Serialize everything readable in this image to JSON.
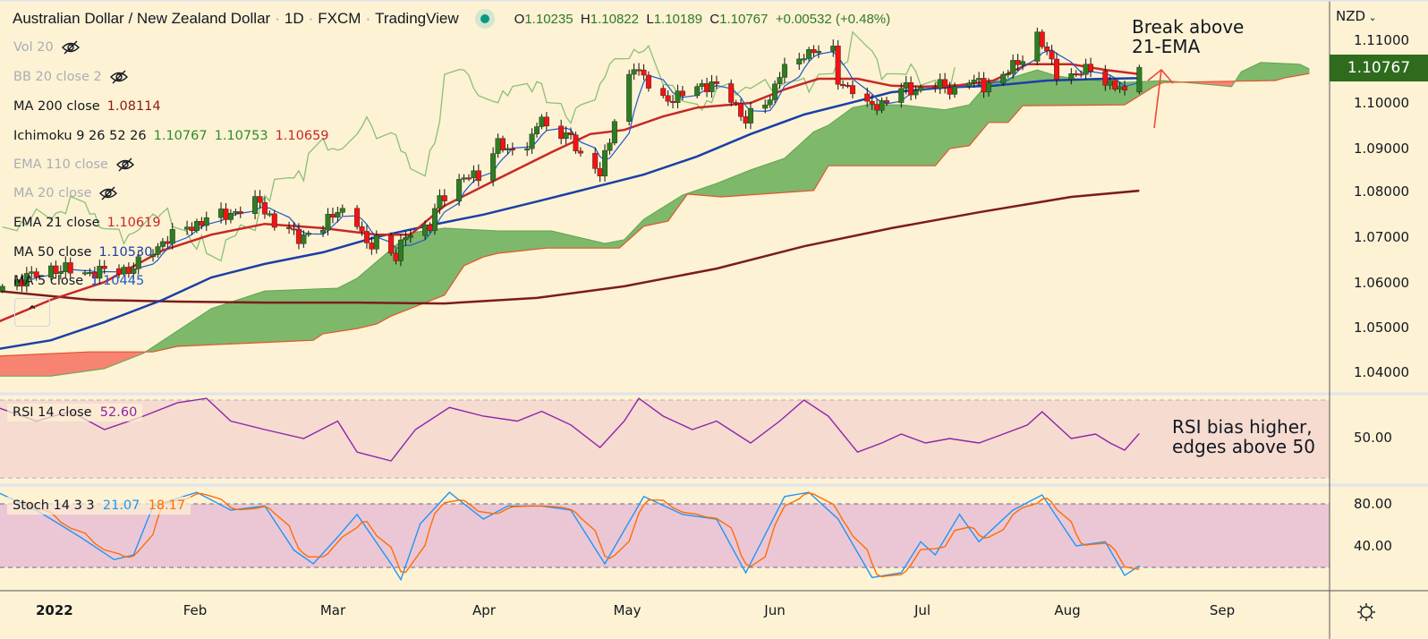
{
  "header": {
    "symbol_name": "Australian Dollar / New Zealand Dollar",
    "interval": "1D",
    "exchange": "FXCM",
    "source": "TradingView",
    "ohlc": {
      "open_label": "O",
      "open": "1.10235",
      "high_label": "H",
      "high": "1.10822",
      "low_label": "L",
      "low": "1.10189",
      "close_label": "C",
      "close": "1.10767",
      "change": "+0.00532 (+0.48%)"
    }
  },
  "indicators": [
    {
      "label": "Vol 20",
      "value": "",
      "hidden": true
    },
    {
      "label": "BB 20 close 2",
      "value": "",
      "hidden": true
    },
    {
      "label": "MA 200 close",
      "value": "1.08114",
      "color": "#8b1a1a"
    },
    {
      "label": "Ichimoku 9 26 52 26",
      "values": [
        "1.10767",
        "1.10753",
        "1.10659"
      ],
      "color": "#2e8b2e"
    },
    {
      "label": "EMA 110 close",
      "value": "",
      "hidden": true
    },
    {
      "label": "MA 20 close",
      "value": "",
      "hidden": true
    },
    {
      "label": "EMA 21 close",
      "value": "1.10619",
      "color": "#c62828"
    },
    {
      "label": "MA 50 close",
      "value": "1.10530",
      "color": "#1a3fa8"
    },
    {
      "label": "MA 5 close",
      "value": "1.10445",
      "color": "#1e58d0"
    }
  ],
  "price_axis": {
    "currency": "NZD",
    "ticks": [
      "1.11000",
      "1.10000",
      "1.09000",
      "1.08000",
      "1.07000",
      "1.06000",
      "1.05000",
      "1.04000"
    ],
    "last_price": "1.10767"
  },
  "time_axis": {
    "ticks": [
      "2022",
      "Feb",
      "Mar",
      "Apr",
      "May",
      "Jun",
      "Jul",
      "Aug",
      "Sep"
    ]
  },
  "rsi_pane": {
    "label": "RSI 14 close",
    "value": "52.60",
    "tick": "50.00"
  },
  "stoch_pane": {
    "label": "Stoch 14 3 3",
    "k": "21.07",
    "d": "18.17",
    "ticks": [
      "80.00",
      "40.00"
    ]
  },
  "annotations": {
    "break_ema": [
      "Break above",
      "21-EMA"
    ],
    "rsi_note": [
      "RSI bias higher,",
      "edges above 50"
    ]
  },
  "colors": {
    "background": "#fdf2d3",
    "up": "#2f7d22",
    "down": "#f01414",
    "cloud_bull": "#77b465",
    "cloud_bear": "#f77c6e",
    "chikou": "#8cbf78",
    "rsi": "#8e24aa",
    "stoch_k": "#2196f3",
    "stoch_d": "#ff6d00"
  },
  "chart_data": {
    "type": "candlestick",
    "ylim": [
      1.035,
      1.12
    ],
    "close_keypoints": [
      [
        "2021-12-24",
        1.0606
      ],
      [
        "2022-01-03",
        1.0644
      ],
      [
        "2022-01-11",
        1.0635
      ],
      [
        "2022-01-20",
        1.0644
      ],
      [
        "2022-01-26",
        1.0702
      ],
      [
        "2022-01-31",
        1.0731
      ],
      [
        "2022-02-04",
        1.075
      ],
      [
        "2022-02-11",
        1.0769
      ],
      [
        "2022-02-15",
        1.0788
      ],
      [
        "2022-02-18",
        1.074
      ],
      [
        "2022-02-23",
        1.0712
      ],
      [
        "2022-02-28",
        1.0731
      ],
      [
        "2022-03-03",
        1.0775
      ],
      [
        "2022-03-07",
        1.074
      ],
      [
        "2022-03-09",
        1.0692
      ],
      [
        "2022-03-11",
        1.0712
      ],
      [
        "2022-03-15",
        1.0663
      ],
      [
        "2022-03-17",
        1.0721
      ],
      [
        "2022-03-22",
        1.0731
      ],
      [
        "2022-03-24",
        1.0798
      ],
      [
        "2022-03-29",
        1.0837
      ],
      [
        "2022-04-01",
        1.0846
      ],
      [
        "2022-04-05",
        1.0913
      ],
      [
        "2022-04-07",
        1.0894
      ],
      [
        "2022-04-12",
        1.0923
      ],
      [
        "2022-04-14",
        1.0971
      ],
      [
        "2022-04-15",
        1.0942
      ],
      [
        "2022-04-19",
        1.0937
      ],
      [
        "2022-04-22",
        1.0885
      ],
      [
        "2022-04-26",
        1.0856
      ],
      [
        "2022-04-28",
        1.0913
      ],
      [
        "2022-04-29",
        1.0962
      ],
      [
        "2022-05-03",
        1.1087
      ],
      [
        "2022-05-05",
        1.1048
      ],
      [
        "2022-05-09",
        1.101
      ],
      [
        "2022-05-12",
        1.101
      ],
      [
        "2022-05-16",
        1.1038
      ],
      [
        "2022-05-19",
        1.1038
      ],
      [
        "2022-05-23",
        1.101
      ],
      [
        "2022-05-26",
        1.0962
      ],
      [
        "2022-05-31",
        1.101
      ],
      [
        "2022-06-02",
        1.1067
      ],
      [
        "2022-06-06",
        1.1087
      ],
      [
        "2022-06-07",
        1.1106
      ],
      [
        "2022-06-09",
        1.1115
      ],
      [
        "2022-06-13",
        1.1106
      ],
      [
        "2022-06-14",
        1.1048
      ],
      [
        "2022-06-17",
        1.1029
      ],
      [
        "2022-06-20",
        1.099
      ],
      [
        "2022-06-23",
        1.1
      ],
      [
        "2022-06-27",
        1.1029
      ],
      [
        "2022-06-30",
        1.1029
      ],
      [
        "2022-07-04",
        1.1038
      ],
      [
        "2022-07-08",
        1.1029
      ],
      [
        "2022-07-11",
        1.1048
      ],
      [
        "2022-07-14",
        1.1038
      ],
      [
        "2022-07-18",
        1.1058
      ],
      [
        "2022-07-21",
        1.1087
      ],
      [
        "2022-07-25",
        1.1144
      ],
      [
        "2022-07-26",
        1.1125
      ],
      [
        "2022-07-29",
        1.1067
      ],
      [
        "2022-08-02",
        1.1058
      ],
      [
        "2022-08-05",
        1.1077
      ],
      [
        "2022-08-09",
        1.1038
      ],
      [
        "2022-08-11",
        1.1029
      ],
      [
        "2022-08-12",
        1.10235
      ],
      [
        "2022-08-15",
        1.10767
      ]
    ],
    "last_bar": {
      "open": 1.10235,
      "high": 1.10822,
      "low": 1.10189,
      "close": 1.10767
    },
    "ema21": [
      [
        "2021-12-23",
        1.0529
      ],
      [
        "2022-01-03",
        1.0577
      ],
      [
        "2022-01-14",
        1.0615
      ],
      [
        "2022-01-26",
        1.0683
      ],
      [
        "2022-02-05",
        1.0717
      ],
      [
        "2022-02-16",
        1.074
      ],
      [
        "2022-02-28",
        1.0731
      ],
      [
        "2022-03-11",
        1.0717
      ],
      [
        "2022-03-18",
        1.0717
      ],
      [
        "2022-03-25",
        1.0779
      ],
      [
        "2022-04-05",
        1.0837
      ],
      [
        "2022-04-16",
        1.0894
      ],
      [
        "2022-04-24",
        1.0933
      ],
      [
        "2022-05-01",
        1.0942
      ],
      [
        "2022-05-09",
        1.0971
      ],
      [
        "2022-05-16",
        1.099
      ],
      [
        "2022-05-27",
        1.1
      ],
      [
        "2022-06-03",
        1.1029
      ],
      [
        "2022-06-10",
        1.1052
      ],
      [
        "2022-06-18",
        1.1052
      ],
      [
        "2022-06-25",
        1.1037
      ],
      [
        "2022-07-02",
        1.1035
      ],
      [
        "2022-07-09",
        1.1038
      ],
      [
        "2022-07-16",
        1.1048
      ],
      [
        "2022-07-23",
        1.1083
      ],
      [
        "2022-08-01",
        1.1083
      ],
      [
        "2022-08-08",
        1.1071
      ],
      [
        "2022-08-15",
        1.10619
      ]
    ],
    "ma50": [
      [
        "2021-12-23",
        1.0471
      ],
      [
        "2022-01-03",
        1.049
      ],
      [
        "2022-01-14",
        1.0529
      ],
      [
        "2022-01-26",
        1.0577
      ],
      [
        "2022-02-05",
        1.0625
      ],
      [
        "2022-02-16",
        1.0654
      ],
      [
        "2022-02-28",
        1.0679
      ],
      [
        "2022-03-11",
        1.0712
      ],
      [
        "2022-03-22",
        1.0737
      ],
      [
        "2022-04-02",
        1.076
      ],
      [
        "2022-04-13",
        1.0788
      ],
      [
        "2022-04-24",
        1.0817
      ],
      [
        "2022-05-05",
        1.0846
      ],
      [
        "2022-05-16",
        1.0885
      ],
      [
        "2022-05-27",
        1.0933
      ],
      [
        "2022-06-07",
        1.0975
      ],
      [
        "2022-06-18",
        1.1004
      ],
      [
        "2022-06-25",
        1.1023
      ],
      [
        "2022-07-06",
        1.1033
      ],
      [
        "2022-07-16",
        1.1037
      ],
      [
        "2022-07-27",
        1.1048
      ],
      [
        "2022-08-08",
        1.1052
      ],
      [
        "2022-08-15",
        1.1053
      ]
    ],
    "ma200": [
      [
        "2021-12-23",
        1.0596
      ],
      [
        "2022-01-11",
        1.0577
      ],
      [
        "2022-01-29",
        1.0573
      ],
      [
        "2022-02-16",
        1.0571
      ],
      [
        "2022-03-07",
        1.0571
      ],
      [
        "2022-03-25",
        1.0569
      ],
      [
        "2022-04-13",
        1.0581
      ],
      [
        "2022-05-01",
        1.0606
      ],
      [
        "2022-05-20",
        1.0644
      ],
      [
        "2022-06-07",
        1.0692
      ],
      [
        "2022-06-25",
        1.0731
      ],
      [
        "2022-07-13",
        1.0765
      ],
      [
        "2022-08-01",
        1.0798
      ],
      [
        "2022-08-15",
        1.08114
      ]
    ],
    "senkou_a": [
      [
        "2021-12-23",
        1.0413
      ],
      [
        "2022-01-03",
        1.0413
      ],
      [
        "2022-01-14",
        1.0429
      ],
      [
        "2022-01-22",
        1.0462
      ],
      [
        "2022-01-29",
        1.051
      ],
      [
        "2022-02-05",
        1.0558
      ],
      [
        "2022-02-16",
        1.0596
      ],
      [
        "2022-03-03",
        1.0602
      ],
      [
        "2022-03-07",
        1.0623
      ],
      [
        "2022-03-18",
        1.0721
      ],
      [
        "2022-03-25",
        1.0731
      ],
      [
        "2022-04-05",
        1.0725
      ],
      [
        "2022-04-16",
        1.0725
      ],
      [
        "2022-04-27",
        1.0698
      ],
      [
        "2022-05-01",
        1.0706
      ],
      [
        "2022-05-05",
        1.075
      ],
      [
        "2022-05-13",
        1.0802
      ],
      [
        "2022-05-20",
        1.0827
      ],
      [
        "2022-05-27",
        1.0856
      ],
      [
        "2022-06-03",
        1.0881
      ],
      [
        "2022-06-09",
        1.0938
      ],
      [
        "2022-06-12",
        1.0952
      ],
      [
        "2022-06-17",
        1.099
      ],
      [
        "2022-06-20",
        1.0996
      ],
      [
        "2022-06-27",
        1.0996
      ],
      [
        "2022-07-06",
        1.0985
      ],
      [
        "2022-07-11",
        1.0996
      ],
      [
        "2022-07-15",
        1.1044
      ],
      [
        "2022-07-19",
        1.1052
      ],
      [
        "2022-07-25",
        1.1071
      ],
      [
        "2022-07-29",
        1.1058
      ],
      [
        "2022-08-02",
        1.1052
      ],
      [
        "2022-08-12",
        1.1044
      ],
      [
        "2022-08-20",
        1.1048
      ],
      [
        "2022-08-31",
        1.1038
      ],
      [
        "2022-09-03",
        1.1035
      ],
      [
        "2022-09-05",
        1.1067
      ],
      [
        "2022-09-09",
        1.1087
      ],
      [
        "2022-09-17",
        1.1083
      ],
      [
        "2022-09-19",
        1.1073
      ]
    ],
    "senkou_b": [
      [
        "2021-12-23",
        1.0456
      ],
      [
        "2022-01-11",
        1.0465
      ],
      [
        "2022-01-24",
        1.0465
      ],
      [
        "2022-01-29",
        1.0477
      ],
      [
        "2022-02-26",
        1.049
      ],
      [
        "2022-02-28",
        1.0504
      ],
      [
        "2022-03-07",
        1.0515
      ],
      [
        "2022-03-11",
        1.0525
      ],
      [
        "2022-03-14",
        1.0542
      ],
      [
        "2022-03-25",
        1.0587
      ],
      [
        "2022-03-29",
        1.065
      ],
      [
        "2022-04-02",
        1.0669
      ],
      [
        "2022-04-05",
        1.0677
      ],
      [
        "2022-04-15",
        1.0688
      ],
      [
        "2022-04-30",
        1.0688
      ],
      [
        "2022-05-05",
        1.0735
      ],
      [
        "2022-05-10",
        1.0746
      ],
      [
        "2022-05-14",
        1.0804
      ],
      [
        "2022-05-21",
        1.0798
      ],
      [
        "2022-06-09",
        1.0812
      ],
      [
        "2022-06-12",
        1.0865
      ],
      [
        "2022-07-04",
        1.0865
      ],
      [
        "2022-07-07",
        1.0902
      ],
      [
        "2022-07-11",
        1.0908
      ],
      [
        "2022-07-15",
        1.0958
      ],
      [
        "2022-07-19",
        1.0958
      ],
      [
        "2022-07-22",
        1.0994
      ],
      [
        "2022-08-12",
        1.0996
      ],
      [
        "2022-08-18",
        1.1035
      ],
      [
        "2022-08-20",
        1.1044
      ],
      [
        "2022-09-12",
        1.1048
      ],
      [
        "2022-09-14",
        1.1054
      ],
      [
        "2022-09-19",
        1.1063
      ]
    ],
    "rsi": {
      "levels": [
        30,
        50,
        70
      ],
      "points": [
        [
          "2021-12-23",
          66
        ],
        [
          "2021-12-31",
          59
        ],
        [
          "2022-01-07",
          64
        ],
        [
          "2022-01-14",
          54.6
        ],
        [
          "2022-01-22",
          61.5
        ],
        [
          "2022-01-29",
          68.4
        ],
        [
          "2022-02-04",
          70.7
        ],
        [
          "2022-02-09",
          59
        ],
        [
          "2022-02-16",
          54.6
        ],
        [
          "2022-02-24",
          50
        ],
        [
          "2022-03-03",
          59
        ],
        [
          "2022-03-07",
          43
        ],
        [
          "2022-03-14",
          38.5
        ],
        [
          "2022-03-19",
          54.6
        ],
        [
          "2022-03-26",
          66
        ],
        [
          "2022-04-02",
          61.5
        ],
        [
          "2022-04-09",
          59
        ],
        [
          "2022-04-14",
          64
        ],
        [
          "2022-04-20",
          57
        ],
        [
          "2022-04-26",
          45.4
        ],
        [
          "2022-05-01",
          59
        ],
        [
          "2022-05-04",
          70.7
        ],
        [
          "2022-05-09",
          61.5
        ],
        [
          "2022-05-15",
          54.6
        ],
        [
          "2022-05-20",
          59
        ],
        [
          "2022-05-27",
          47.7
        ],
        [
          "2022-06-02",
          59
        ],
        [
          "2022-06-07",
          69.8
        ],
        [
          "2022-06-12",
          61.5
        ],
        [
          "2022-06-18",
          43
        ],
        [
          "2022-06-23",
          47.7
        ],
        [
          "2022-06-27",
          52.3
        ],
        [
          "2022-07-02",
          47.7
        ],
        [
          "2022-07-07",
          50
        ],
        [
          "2022-07-13",
          47.7
        ],
        [
          "2022-07-18",
          52.3
        ],
        [
          "2022-07-23",
          57
        ],
        [
          "2022-07-26",
          63.8
        ],
        [
          "2022-08-01",
          50
        ],
        [
          "2022-08-06",
          52.3
        ],
        [
          "2022-08-09",
          47.7
        ],
        [
          "2022-08-12",
          44
        ],
        [
          "2022-08-15",
          52.6
        ]
      ]
    },
    "stoch_k": {
      "levels": [
        20,
        80
      ],
      "points": [
        [
          "2021-12-23",
          91
        ],
        [
          "2021-12-31",
          74
        ],
        [
          "2022-01-09",
          48.5
        ],
        [
          "2022-01-16",
          27
        ],
        [
          "2022-01-20",
          31.5
        ],
        [
          "2022-01-24",
          78
        ],
        [
          "2022-02-02",
          91
        ],
        [
          "2022-02-09",
          74
        ],
        [
          "2022-02-16",
          78
        ],
        [
          "2022-02-22",
          36
        ],
        [
          "2022-02-26",
          23
        ],
        [
          "2022-03-03",
          48.5
        ],
        [
          "2022-03-07",
          70
        ],
        [
          "2022-03-14",
          23
        ],
        [
          "2022-03-16",
          8
        ],
        [
          "2022-03-20",
          61
        ],
        [
          "2022-03-26",
          91
        ],
        [
          "2022-04-02",
          65.5
        ],
        [
          "2022-04-07",
          78
        ],
        [
          "2022-04-14",
          78
        ],
        [
          "2022-04-20",
          74
        ],
        [
          "2022-04-27",
          23
        ],
        [
          "2022-05-05",
          87
        ],
        [
          "2022-05-13",
          70
        ],
        [
          "2022-05-20",
          65.5
        ],
        [
          "2022-05-26",
          14.5
        ],
        [
          "2022-06-03",
          87
        ],
        [
          "2022-06-08",
          91
        ],
        [
          "2022-06-14",
          65.5
        ],
        [
          "2022-06-21",
          10
        ],
        [
          "2022-06-27",
          14.5
        ],
        [
          "2022-07-01",
          44
        ],
        [
          "2022-07-04",
          31.5
        ],
        [
          "2022-07-09",
          70
        ],
        [
          "2022-07-13",
          44
        ],
        [
          "2022-07-20",
          74
        ],
        [
          "2022-07-26",
          88.5
        ],
        [
          "2022-08-02",
          40
        ],
        [
          "2022-08-08",
          44
        ],
        [
          "2022-08-12",
          12
        ],
        [
          "2022-08-15",
          21.07
        ]
      ]
    }
  }
}
